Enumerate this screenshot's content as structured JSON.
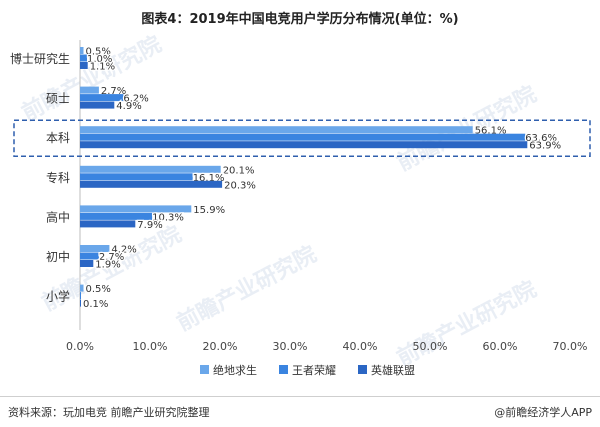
{
  "title": "图表4：2019年中国电竞用户学历分布情况(单位：%)",
  "source": "资料来源：玩加电竞 前瞻产业研究院整理",
  "brand": "@前瞻经济学人APP",
  "watermark_text": "前瞻产业研究院",
  "colors": {
    "绝地求生": "#6aa7ea",
    "王者荣耀": "#3a84e0",
    "英雄联盟": "#2b66c4",
    "highlight_border": "#2f5fae"
  },
  "chart_data": {
    "type": "bar",
    "orientation": "horizontal",
    "categories": [
      "博士研究生",
      "硕士",
      "本科",
      "专科",
      "高中",
      "初中",
      "小学"
    ],
    "series": [
      {
        "name": "绝地求生",
        "values": [
          0.5,
          2.7,
          56.1,
          20.1,
          15.9,
          4.2,
          0.5
        ],
        "labels": [
          "0.5%",
          "2.7%",
          "56.1%",
          "20.1%",
          "15.9%",
          "4.2%",
          "0.5%"
        ]
      },
      {
        "name": "王者荣耀",
        "values": [
          1.0,
          6.2,
          63.6,
          16.1,
          10.3,
          2.7,
          0.1
        ],
        "labels": [
          "1.0%",
          "6.2%",
          "63.6%",
          "16.1%",
          "10.3%",
          "2.7%",
          ""
        ]
      },
      {
        "name": "英雄联盟",
        "values": [
          1.1,
          4.9,
          63.9,
          20.3,
          7.9,
          1.9,
          0.1
        ],
        "labels": [
          "1.1%",
          "4.9%",
          "63.9%",
          "20.3%",
          "7.9%",
          "1.9%",
          "0.1%"
        ]
      }
    ],
    "xlim": [
      0,
      70
    ],
    "xticks": [
      "0.0%",
      "10.0%",
      "20.0%",
      "30.0%",
      "40.0%",
      "50.0%",
      "60.0%",
      "70.0%"
    ],
    "legend_position": "bottom",
    "highlighted_category": "本科"
  }
}
